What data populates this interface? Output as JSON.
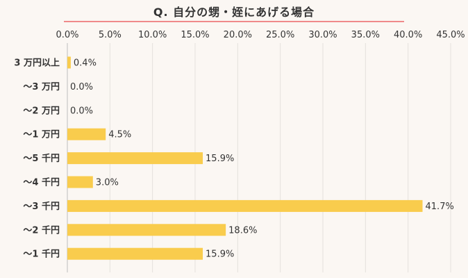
{
  "chart_data": {
    "type": "bar",
    "orientation": "horizontal",
    "title": "Q. 自分の甥・姪にあげる場合",
    "categories": [
      "3 万円以上",
      "〜3 万円",
      "〜2 万円",
      "〜1 万円",
      "〜5 千円",
      "〜4 千円",
      "〜3 千円",
      "〜2 千円",
      "〜1 千円"
    ],
    "values": [
      0.4,
      0.0,
      0.0,
      4.5,
      15.9,
      3.0,
      41.7,
      18.6,
      15.9
    ],
    "value_labels": [
      "0.4%",
      "0.0%",
      "0.0%",
      "4.5%",
      "15.9%",
      "3.0%",
      "41.7%",
      "18.6%",
      "15.9%"
    ],
    "xlim": [
      0,
      45
    ],
    "xticks": [
      "0.0%",
      "5.0%",
      "10.0%",
      "15.0%",
      "20.0%",
      "25.0%",
      "30.0%",
      "35.0%",
      "40.0%",
      "45.0%"
    ],
    "xaxis_position": "top",
    "grid": true,
    "bar_color": "#f9cc4d",
    "title_underline_color": "#f08a8a"
  }
}
